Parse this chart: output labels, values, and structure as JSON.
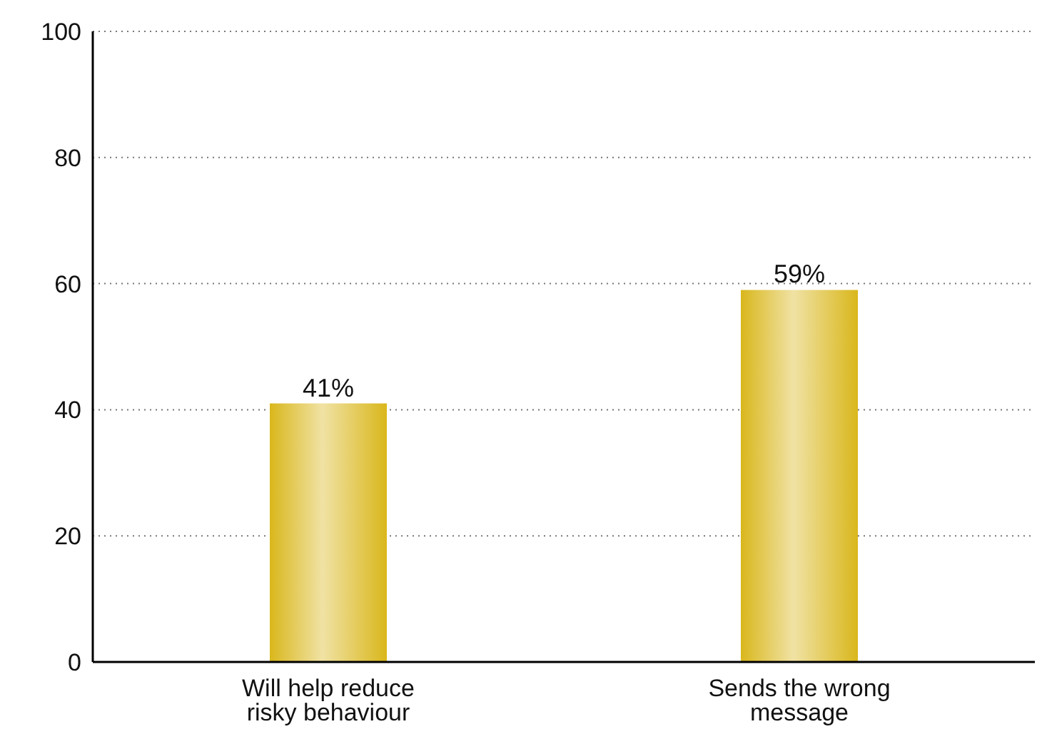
{
  "chart_data": {
    "type": "bar",
    "categories": [
      "Will help reduce risky behaviour",
      "Sends the wrong message"
    ],
    "values": [
      41,
      59
    ],
    "value_labels": [
      "41%",
      "59%"
    ],
    "color": "#d9b71c",
    "ylim": [
      0,
      100
    ],
    "yticks": [
      0,
      20,
      40,
      60,
      80,
      100
    ],
    "grid": "y"
  }
}
